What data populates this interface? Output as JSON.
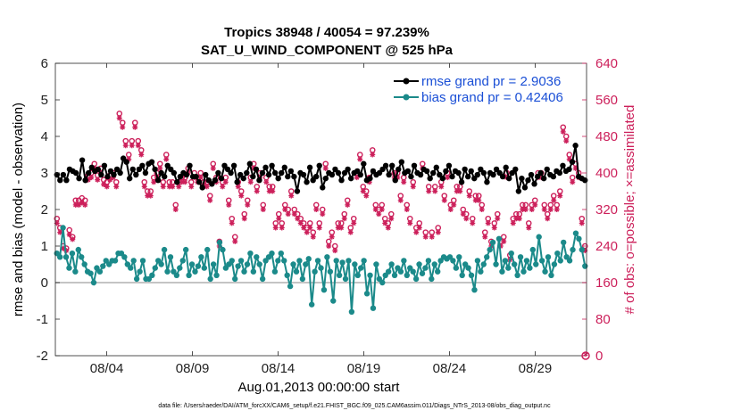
{
  "chart_data": {
    "type": "line",
    "title": "Tropics 38948 / 40054 = 97.239%",
    "subtitle": "SAT_U_WIND_COMPONENT @ 525 hPa",
    "xlabel": "Aug.01,2013 00:00:00 start",
    "ylabel": "rmse and bias (model - observation)",
    "ylabel_right": "# of obs: o=possible; ×=assimilated",
    "footnote": "data file: /Users/raeder/DAI/ATM_forcXX/CAM6_setup/f.e21.FHIST_BGC.f09_025.CAM6assim.011/Diags_NTrS_2013-08/obs_diag_output.nc",
    "xlim": [
      1.0,
      32.0
    ],
    "ylim": [
      -2,
      6
    ],
    "ylim_right": [
      0,
      640
    ],
    "x_ticks": [
      4,
      9,
      14,
      19,
      24,
      29
    ],
    "x_tick_labels": [
      "08/04",
      "08/09",
      "08/14",
      "08/19",
      "08/24",
      "08/29"
    ],
    "y_ticks": [
      "-2",
      "-1",
      "0",
      "1",
      "2",
      "3",
      "4",
      "5",
      "6"
    ],
    "y_ticks_right": [
      "0",
      "80",
      "160",
      "240",
      "320",
      "400",
      "480",
      "560",
      "640"
    ],
    "legend_position": "top-right",
    "colors": {
      "rmse": "#000000",
      "bias": "#1b8a8a",
      "obs": "#cc1f5a",
      "zero_line": "#b0b0b0"
    },
    "series": [
      {
        "name": "rmse grand pr = 2.9036",
        "values": [
          2.95,
          2.8,
          2.95,
          2.8,
          3.1,
          3.05,
          3.0,
          2.85,
          3.35,
          2.8,
          3.0,
          3.15,
          3.05,
          3.1,
          2.95,
          3.2,
          2.9,
          3.05,
          2.95,
          3.1,
          3.0,
          3.4,
          3.3,
          2.85,
          3.1,
          2.95,
          3.1,
          3.2,
          3.0,
          3.25,
          3.3,
          3.1,
          2.8,
          3.0,
          2.9,
          3.2,
          3.1,
          3.0,
          2.75,
          2.9,
          3.0,
          2.95,
          3.2,
          2.9,
          2.9,
          2.75,
          2.6,
          2.95,
          2.8,
          2.7,
          2.8,
          3.0,
          2.85,
          3.2,
          3.1,
          3.0,
          3.2,
          2.75,
          2.95,
          2.85,
          3.0,
          3.25,
          2.9,
          3.1,
          2.8,
          3.0,
          3.15,
          2.95,
          3.2,
          3.0,
          2.85,
          3.0,
          3.15,
          2.9,
          3.05,
          2.9,
          2.5,
          3.0,
          2.95,
          2.75,
          3.15,
          2.8,
          2.9,
          3.2,
          2.6,
          2.85,
          3.0,
          2.95,
          3.1,
          3.0,
          2.8,
          3.0,
          3.1,
          2.85,
          3.0,
          3.05,
          2.95,
          3.25,
          2.8,
          2.85,
          3.05,
          2.95,
          3.0,
          3.1,
          3.2,
          2.95,
          3.2,
          2.8,
          3.1,
          3.3,
          3.0,
          3.05,
          2.9,
          3.2,
          3.0,
          2.95,
          3.1,
          3.05,
          2.85,
          3.0,
          3.15,
          2.95,
          2.85,
          3.05,
          3.2,
          2.9,
          3.05,
          3.0,
          2.75,
          3.1,
          2.9,
          3.05,
          2.85,
          2.95,
          3.1,
          3.0,
          2.75,
          3.0,
          2.95,
          3.1,
          3.0,
          2.9,
          3.15,
          2.85,
          3.0,
          3.1,
          2.5,
          2.85,
          2.6,
          2.8,
          2.95,
          2.7,
          2.9,
          3.0,
          2.85,
          3.1,
          2.95,
          2.9,
          3.05,
          3.0,
          3.2,
          3.05,
          3.1,
          3.3,
          3.75,
          2.9,
          2.85,
          2.8
        ]
      },
      {
        "name": "bias grand pr = 0.42406",
        "values": [
          0.8,
          0.7,
          1.5,
          0.7,
          0.4,
          0.8,
          0.3,
          0.9,
          0.7,
          0.5,
          0.3,
          0.25,
          0.0,
          0.4,
          0.3,
          0.45,
          0.6,
          0.5,
          0.6,
          0.6,
          0.8,
          0.8,
          0.7,
          0.5,
          0.4,
          0.6,
          0.1,
          0.3,
          0.6,
          0.1,
          0.1,
          0.2,
          0.4,
          0.6,
          0.5,
          0.9,
          0.3,
          0.7,
          0.3,
          0.2,
          0.4,
          0.6,
          0.9,
          0.2,
          0.5,
          0.3,
          0.45,
          0.7,
          0.4,
          0.9,
          0.1,
          0.5,
          0.2,
          1.1,
          0.9,
          0.4,
          0.5,
          0.6,
          0.1,
          0.45,
          0.6,
          0.3,
          0.5,
          0.8,
          0.3,
          0.7,
          0.5,
          0.1,
          0.6,
          0.7,
          0.8,
          0.3,
          0.6,
          0.8,
          0.6,
          0.2,
          -0.1,
          0.5,
          0.3,
          0.6,
          0.1,
          0.5,
          0.65,
          -0.6,
          0.3,
          0.6,
          0.4,
          -0.2,
          0.7,
          0.3,
          -0.5,
          0.6,
          0.2,
          0.55,
          0.1,
          0.6,
          -0.8,
          0.5,
          0.2,
          0.4,
          0.6,
          -0.3,
          0.2,
          -0.7,
          0.5,
          0.1,
          0.0,
          0.2,
          0.3,
          0.5,
          0.2,
          0.4,
          0.3,
          0.6,
          0.2,
          0.4,
          0.3,
          0.1,
          0.5,
          0.25,
          0.4,
          0.6,
          0.1,
          0.5,
          0.3,
          0.6,
          0.7,
          0.65,
          0.7,
          0.6,
          0.4,
          0.7,
          0.2,
          0.5,
          0.4,
          0.2,
          -0.2,
          0.6,
          0.3,
          0.5,
          0.7,
          0.9,
          1.1,
          0.5,
          1.2,
          0.3,
          0.6,
          0.4,
          0.8,
          0.5,
          0.2,
          0.7,
          0.3,
          0.6,
          0.4,
          0.9,
          0.5,
          1.25,
          0.6,
          0.3,
          0.7,
          0.2,
          0.5,
          0.8,
          0.6,
          1.1,
          0.7,
          0.6,
          0.9,
          1.35,
          1.2,
          0.9,
          0.45
        ]
      },
      {
        "name": "obs possible",
        "values": [
          300,
          280,
          240,
          235,
          275,
          260,
          340,
          340,
          345,
          340,
          395,
          400,
          420,
          395,
          410,
          385,
          380,
          395,
          400,
          380,
          530,
          510,
          470,
          440,
          470,
          510,
          470,
          450,
          380,
          360,
          360,
          390,
          400,
          420,
          380,
          440,
          380,
          380,
          330,
          380,
          390,
          390,
          410,
          380,
          400,
          390,
          400,
          380,
          380,
          350,
          420,
          390,
          250,
          380,
          390,
          340,
          300,
          260,
          380,
          360,
          310,
          340,
          390,
          420,
          370,
          400,
          330,
          390,
          370,
          370,
          290,
          310,
          290,
          330,
          320,
          360,
          320,
          310,
          300,
          290,
          280,
          290,
          270,
          330,
          290,
          320,
          420,
          250,
          270,
          240,
          290,
          290,
          310,
          340,
          280,
          300,
          400,
          440,
          370,
          360,
          390,
          450,
          330,
          320,
          330,
          300,
          290,
          310,
          400,
          400,
          350,
          390,
          330,
          300,
          380,
          280,
          290,
          420,
          270,
          370,
          270,
          370,
          280,
          380,
          350,
          400,
          330,
          340,
          370,
          370,
          320,
          310,
          360,
          300,
          350,
          350,
          330,
          270,
          300,
          250,
          290,
          310,
          250,
          260,
          400,
          220,
          300,
          310,
          310,
          330,
          330,
          290,
          330,
          340,
          400,
          400,
          330,
          310,
          330,
          350,
          330,
          360,
          500,
          480,
          440,
          390,
          420,
          400,
          300,
          240
        ]
      },
      {
        "name": "obs assimilated",
        "values": [
          290,
          270,
          235,
          230,
          265,
          255,
          330,
          330,
          335,
          330,
          385,
          390,
          410,
          385,
          400,
          375,
          370,
          385,
          390,
          370,
          520,
          500,
          460,
          430,
          460,
          500,
          460,
          440,
          370,
          350,
          350,
          380,
          390,
          410,
          370,
          430,
          370,
          370,
          320,
          370,
          380,
          380,
          400,
          370,
          390,
          380,
          390,
          370,
          370,
          340,
          410,
          380,
          240,
          370,
          380,
          330,
          290,
          250,
          370,
          350,
          300,
          330,
          380,
          410,
          360,
          390,
          320,
          380,
          360,
          360,
          280,
          300,
          280,
          320,
          310,
          350,
          310,
          300,
          290,
          280,
          270,
          280,
          260,
          320,
          280,
          310,
          410,
          240,
          260,
          230,
          280,
          280,
          300,
          330,
          270,
          290,
          390,
          430,
          360,
          350,
          380,
          440,
          320,
          310,
          320,
          290,
          280,
          300,
          390,
          390,
          340,
          380,
          320,
          290,
          370,
          270,
          280,
          410,
          260,
          360,
          260,
          360,
          270,
          370,
          340,
          390,
          320,
          330,
          360,
          360,
          310,
          300,
          350,
          290,
          340,
          340,
          320,
          260,
          290,
          240,
          280,
          300,
          240,
          250,
          390,
          210,
          290,
          300,
          300,
          320,
          320,
          280,
          320,
          330,
          390,
          390,
          320,
          300,
          320,
          340,
          320,
          350,
          490,
          470,
          430,
          380,
          410,
          390,
          290,
          230
        ]
      }
    ]
  }
}
